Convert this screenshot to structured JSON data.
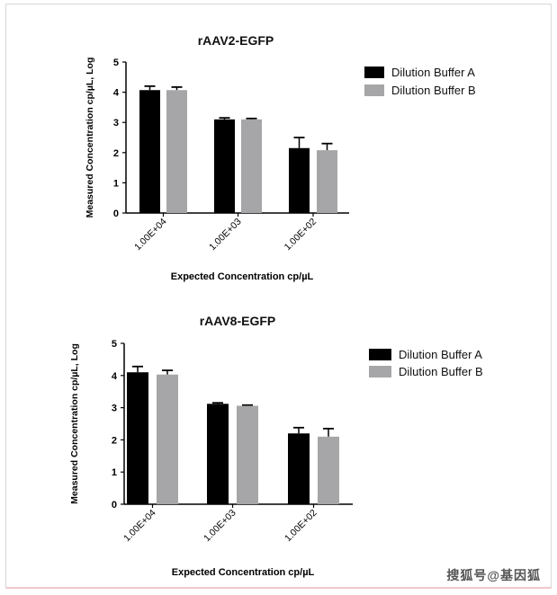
{
  "chart_data": [
    {
      "type": "bar",
      "title": "rAAV2-EGFP",
      "xlabel": "Expected Concentration cp/µL",
      "ylabel": "Measured Concentration cp/µL, Log",
      "ylim": [
        0,
        5
      ],
      "yticks": [
        "0",
        "1",
        "2",
        "3",
        "4",
        "5"
      ],
      "categories": [
        "1.00E+04",
        "1.00E+03",
        "1.00E+02"
      ],
      "legend_position": "top-right",
      "series": [
        {
          "name": "Dilution Buffer A",
          "color": "#000000",
          "values": [
            4.07,
            3.1,
            2.15
          ],
          "errors": [
            0.13,
            0.05,
            0.35
          ]
        },
        {
          "name": "Dilution Buffer B",
          "color": "#a6a6a8",
          "values": [
            4.07,
            3.1,
            2.08
          ],
          "errors": [
            0.1,
            0.03,
            0.22
          ]
        }
      ]
    },
    {
      "type": "bar",
      "title": "rAAV8-EGFP",
      "xlabel": "Expected Concentration cp/µL",
      "ylabel": "Measured Concentration cp/µL, Log",
      "ylim": [
        0,
        5
      ],
      "yticks": [
        "0",
        "1",
        "2",
        "3",
        "4",
        "5"
      ],
      "categories": [
        "1.00E+04",
        "1.00E+03",
        "1.00E+02"
      ],
      "legend_position": "top-right",
      "series": [
        {
          "name": "Dilution Buffer A",
          "color": "#000000",
          "values": [
            4.1,
            3.12,
            2.2
          ],
          "errors": [
            0.18,
            0.03,
            0.18
          ]
        },
        {
          "name": "Dilution Buffer B",
          "color": "#a6a6a8",
          "values": [
            4.03,
            3.06,
            2.1
          ],
          "errors": [
            0.13,
            0.02,
            0.25
          ]
        }
      ]
    }
  ],
  "watermark": "搜狐号@基因狐"
}
